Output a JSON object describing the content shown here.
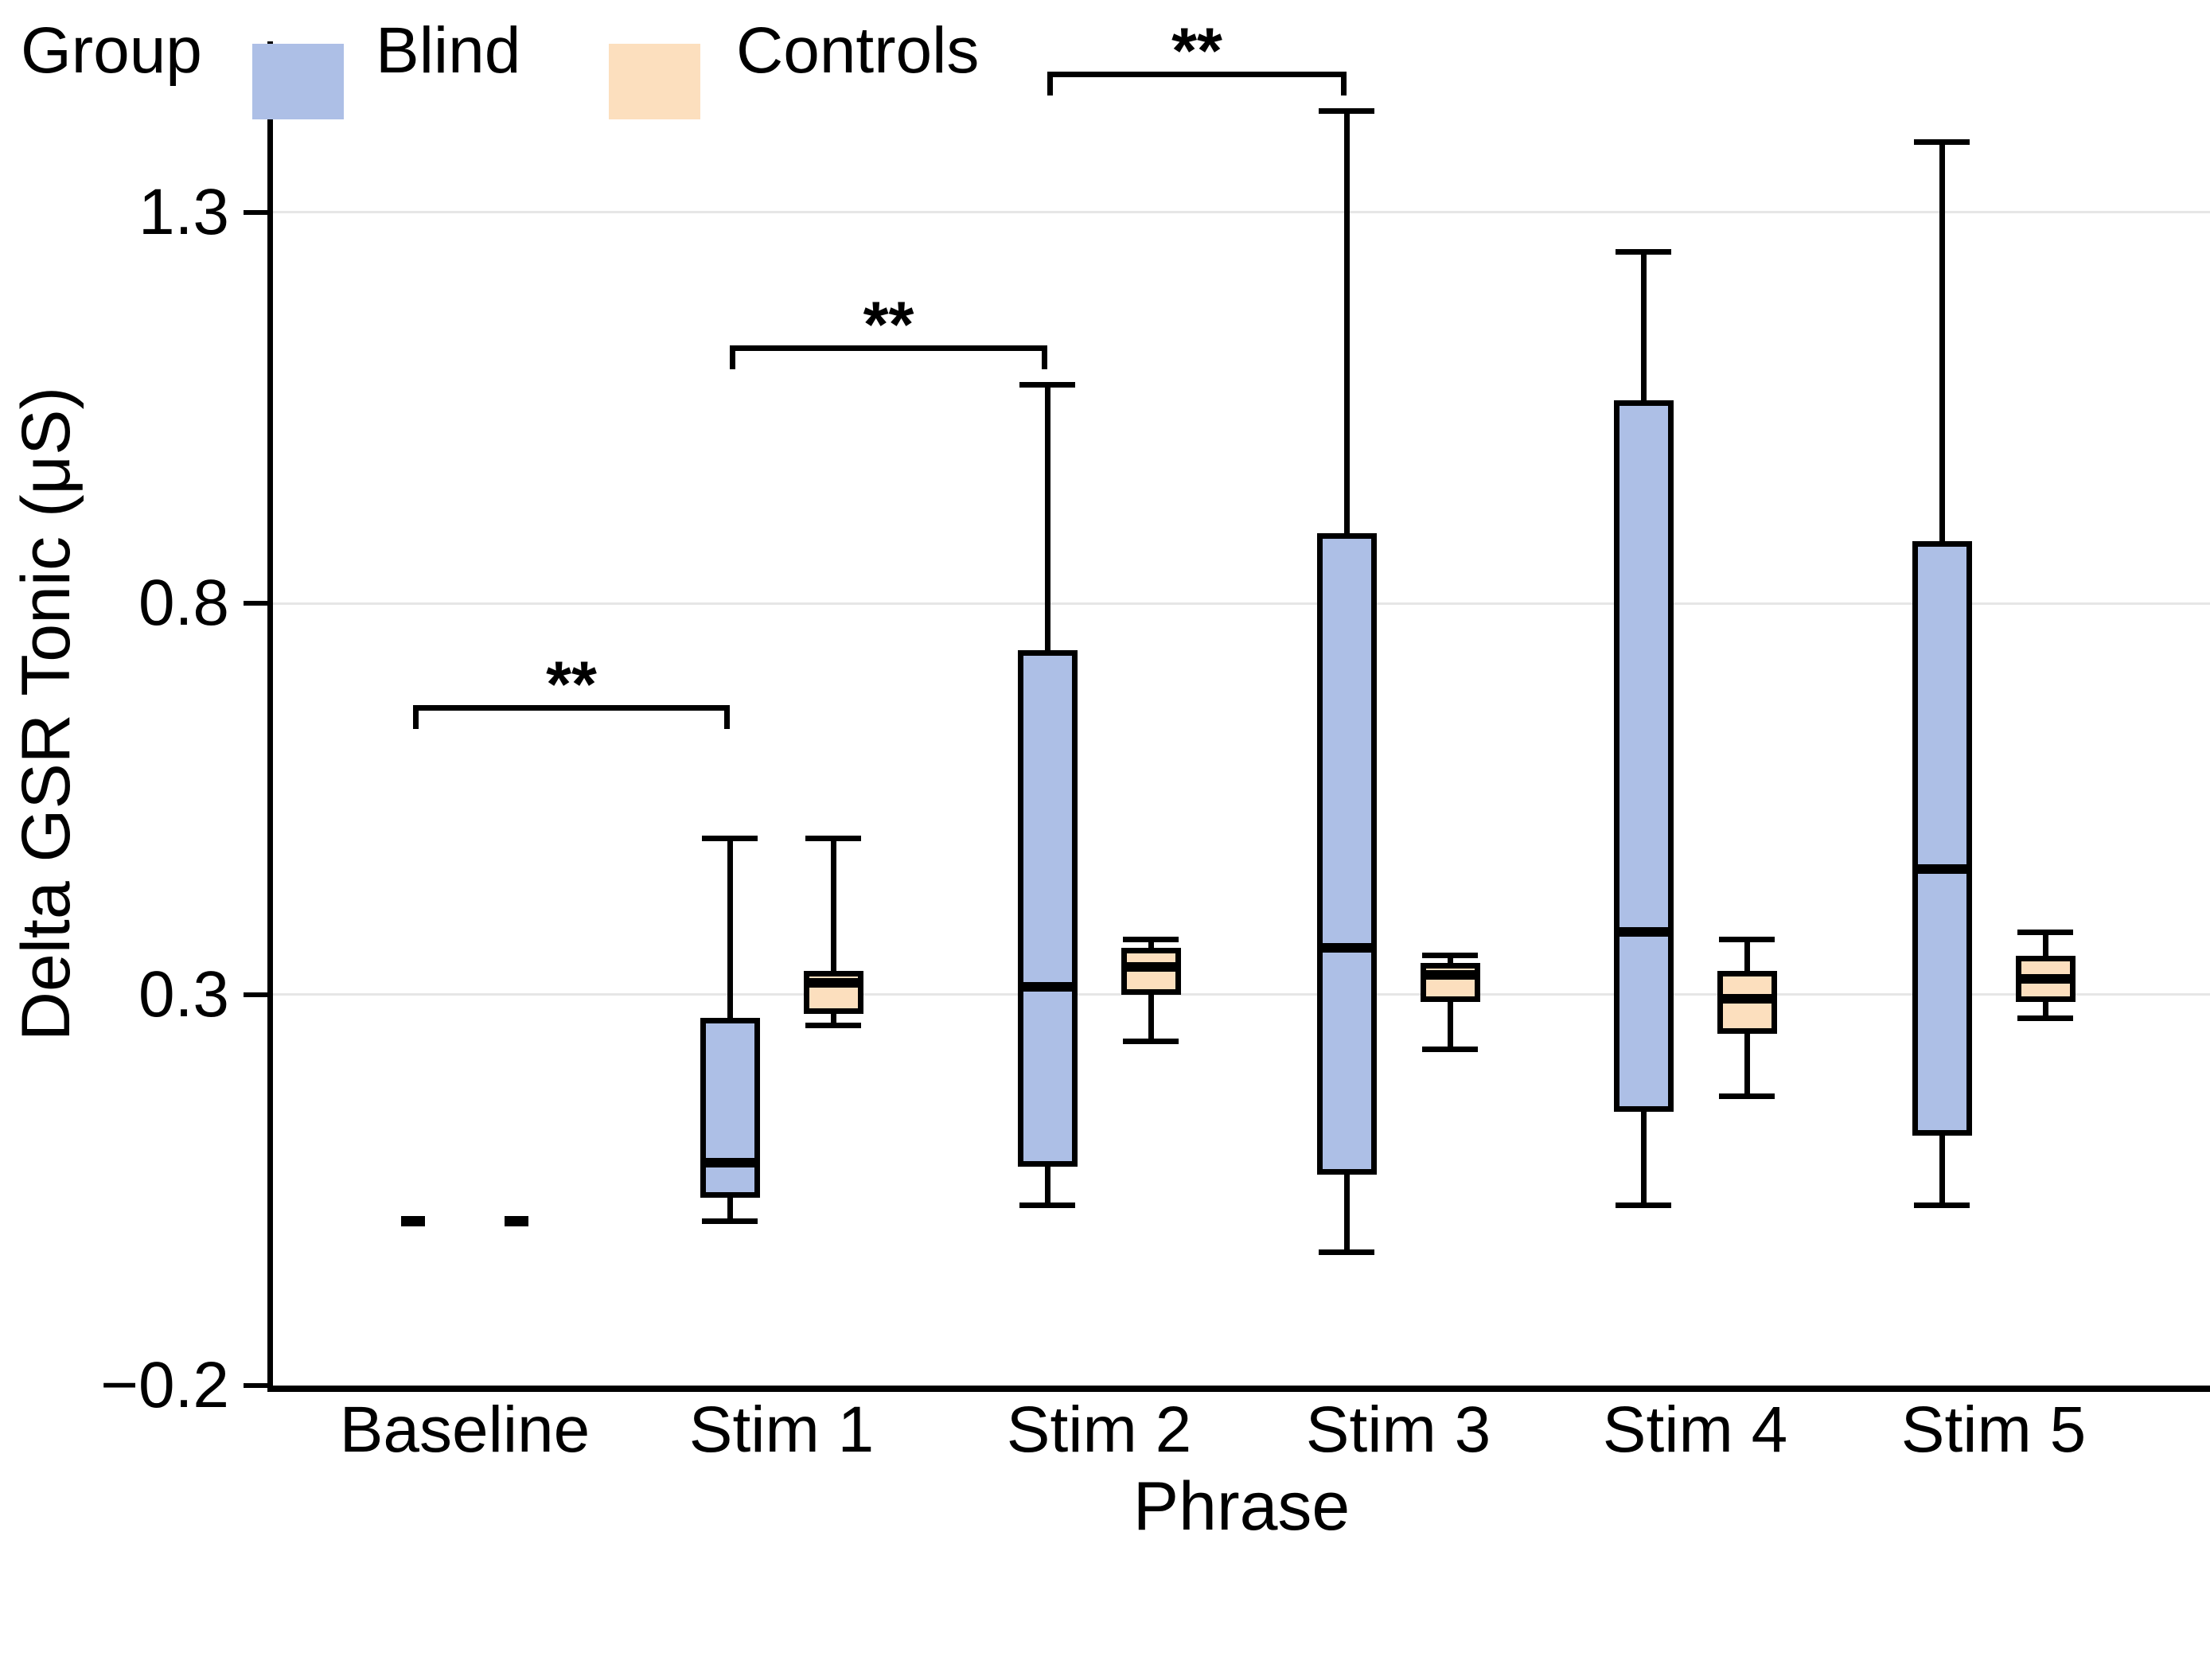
{
  "chart_data": {
    "type": "box",
    "title": "",
    "xlabel": "Phrase",
    "ylabel": "Delta GSR Tonic (μS)",
    "categories": [
      "Baseline",
      "Stim 1",
      "Stim 2",
      "Stim 3",
      "Stim 4",
      "Stim 5"
    ],
    "ylim": [
      -0.2,
      1.52
    ],
    "yticks": [
      -0.2,
      0.3,
      0.8,
      1.3
    ],
    "ytick_labels": [
      "−0.2",
      "0.3",
      "0.8",
      "1.3"
    ],
    "grid": "horizontal-only",
    "colors": {
      "blind_fill": "#adbfe6",
      "controls_fill": "#fcdfbe",
      "line": "#000000",
      "gridline": "#e6e6e6",
      "background": "#ffffff"
    },
    "legend": {
      "title": "Group",
      "position": "bottom-left",
      "entries": [
        {
          "label": "Blind",
          "color": "#adbfe6"
        },
        {
          "label": "Controls",
          "color": "#fcdfbe"
        }
      ]
    },
    "series": [
      {
        "name": "Blind",
        "color": "#adbfe6",
        "boxes": [
          {
            "category": "Baseline",
            "collapsed": true,
            "median": 0.01
          },
          {
            "category": "Stim 1",
            "whisker_low": 0.01,
            "q1": 0.04,
            "median": 0.085,
            "q3": 0.27,
            "whisker_high": 0.5
          },
          {
            "category": "Stim 2",
            "whisker_low": 0.03,
            "q1": 0.08,
            "median": 0.31,
            "q3": 0.74,
            "whisker_high": 1.08
          },
          {
            "category": "Stim 3",
            "whisker_low": -0.03,
            "q1": 0.07,
            "median": 0.36,
            "q3": 0.89,
            "whisker_high": 1.43
          },
          {
            "category": "Stim 4",
            "whisker_low": 0.03,
            "q1": 0.15,
            "median": 0.38,
            "q3": 1.06,
            "whisker_high": 1.25
          },
          {
            "category": "Stim 5",
            "whisker_low": 0.03,
            "q1": 0.12,
            "median": 0.46,
            "q3": 0.88,
            "whisker_high": 1.39
          }
        ]
      },
      {
        "name": "Controls",
        "color": "#fcdfbe",
        "boxes": [
          {
            "category": "Baseline",
            "collapsed": true,
            "median": 0.01
          },
          {
            "category": "Stim 1",
            "whisker_low": 0.26,
            "q1": 0.275,
            "median": 0.315,
            "q3": 0.33,
            "whisker_high": 0.5
          },
          {
            "category": "Stim 2",
            "whisker_low": 0.24,
            "q1": 0.3,
            "median": 0.335,
            "q3": 0.36,
            "whisker_high": 0.37
          },
          {
            "category": "Stim 3",
            "whisker_low": 0.23,
            "q1": 0.29,
            "median": 0.325,
            "q3": 0.34,
            "whisker_high": 0.35
          },
          {
            "category": "Stim 4",
            "whisker_low": 0.17,
            "q1": 0.25,
            "median": 0.295,
            "q3": 0.33,
            "whisker_high": 0.37
          },
          {
            "category": "Stim 5",
            "whisker_low": 0.27,
            "q1": 0.29,
            "median": 0.32,
            "q3": 0.35,
            "whisker_high": 0.38
          }
        ]
      }
    ],
    "significance": [
      {
        "from": "Baseline",
        "to": "Stim 1",
        "group": "Blind",
        "label": "**",
        "y": 0.67
      },
      {
        "from": "Stim 1",
        "to": "Stim 2",
        "group": "Blind",
        "label": "**",
        "y": 1.13
      },
      {
        "from": "Stim 2",
        "to": "Stim 3",
        "group": "Blind",
        "label": "**",
        "y": 1.48
      }
    ]
  }
}
